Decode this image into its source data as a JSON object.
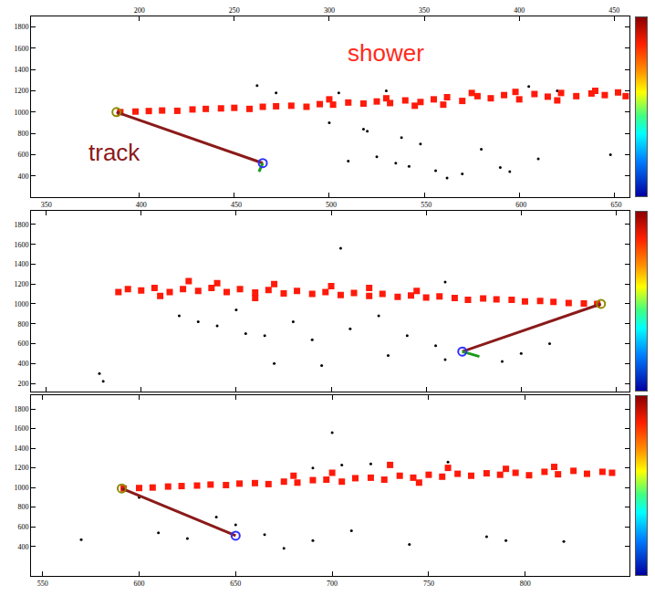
{
  "chart_data": [
    {
      "type": "scatter",
      "xlim": [
        143,
        458
      ],
      "xticks": [
        200,
        250,
        300,
        350,
        400,
        450
      ],
      "ylim": [
        200,
        1900
      ],
      "yticks": [
        400,
        600,
        800,
        1000,
        1200,
        1400,
        1600,
        1800
      ],
      "annotations": [
        {
          "text": "shower",
          "x": 330,
          "y": 1560,
          "color": "#ff2a1a"
        },
        {
          "text": "track",
          "x": 187,
          "y": 620,
          "color": "#8b1a1a"
        }
      ],
      "series": [
        {
          "type": "scatter",
          "marker": "circle",
          "color": "#000000",
          "x": [
            262,
            272,
            305,
            330,
            300,
            318,
            320,
            338,
            348,
            325,
            335,
            342,
            310,
            356,
            370,
            390,
            395,
            410,
            405,
            420,
            440,
            448,
            380,
            362
          ],
          "values": [
            1250,
            1180,
            1180,
            1200,
            900,
            840,
            820,
            760,
            700,
            580,
            520,
            490,
            540,
            450,
            420,
            480,
            440,
            560,
            1240,
            1200,
            1210,
            600,
            650,
            380
          ]
        },
        {
          "type": "scatter",
          "marker": "square",
          "color": "#ff1a0a",
          "x": [
            190,
            198,
            205,
            212,
            220,
            228,
            235,
            243,
            250,
            258,
            265,
            272,
            280,
            288,
            295,
            302,
            310,
            318,
            325,
            332,
            340,
            348,
            355,
            362,
            370,
            378,
            385,
            392,
            400,
            408,
            415,
            422,
            430,
            438,
            445,
            452,
            456,
            300,
            345,
            375,
            398,
            420,
            440,
            360,
            330
          ],
          "values": [
            1000,
            1005,
            1010,
            1015,
            1012,
            1025,
            1030,
            1035,
            1040,
            1030,
            1050,
            1055,
            1060,
            1050,
            1075,
            1070,
            1090,
            1080,
            1100,
            1085,
            1110,
            1095,
            1120,
            1140,
            1105,
            1150,
            1130,
            1160,
            1120,
            1170,
            1145,
            1180,
            1150,
            1175,
            1160,
            1185,
            1150,
            1120,
            1060,
            1180,
            1190,
            1110,
            1200,
            1070,
            1130
          ]
        },
        {
          "type": "line",
          "line_style": "solid",
          "color": "#8b1a1a",
          "x": [
            188,
            265
          ],
          "values": [
            1000,
            520
          ]
        },
        {
          "type": "line",
          "line_style": "solid",
          "color": "#1a9a1a",
          "x": [
            265,
            263
          ],
          "values": [
            520,
            440
          ]
        },
        {
          "type": "scatter",
          "marker": "circle-open",
          "color": "#8c8c00",
          "x": [
            188
          ],
          "values": [
            1000
          ]
        },
        {
          "type": "scatter",
          "marker": "circle-open",
          "color": "#3030ff",
          "x": [
            265
          ],
          "values": [
            520
          ]
        }
      ]
    },
    {
      "type": "scatter",
      "xlim": [
        342,
        657
      ],
      "xticks": [
        350,
        400,
        450,
        500,
        550,
        600,
        650
      ],
      "ylim": [
        120,
        1940
      ],
      "yticks": [
        200,
        400,
        600,
        800,
        1000,
        1200,
        1400,
        1600,
        1800
      ],
      "series": [
        {
          "type": "scatter",
          "marker": "circle",
          "color": "#000000",
          "x": [
            378,
            380,
            420,
            430,
            440,
            455,
            465,
            480,
            490,
            470,
            495,
            510,
            525,
            540,
            555,
            530,
            560,
            590,
            600,
            615,
            505,
            560,
            450
          ],
          "values": [
            300,
            220,
            880,
            820,
            780,
            700,
            680,
            820,
            640,
            400,
            380,
            750,
            880,
            680,
            580,
            480,
            440,
            420,
            500,
            600,
            1560,
            1220,
            940
          ]
        },
        {
          "type": "scatter",
          "marker": "square",
          "color": "#ff1a0a",
          "x": [
            640,
            633,
            625,
            617,
            610,
            602,
            595,
            587,
            580,
            572,
            565,
            557,
            550,
            542,
            535,
            527,
            520,
            512,
            505,
            497,
            490,
            482,
            475,
            467,
            460,
            452,
            445,
            437,
            430,
            422,
            415,
            407,
            400,
            393,
            388,
            500,
            470,
            440,
            520,
            545,
            460,
            425,
            410
          ],
          "values": [
            1000,
            1005,
            1010,
            1020,
            1030,
            1025,
            1040,
            1045,
            1055,
            1040,
            1060,
            1075,
            1065,
            1085,
            1070,
            1100,
            1080,
            1110,
            1090,
            1120,
            1100,
            1130,
            1105,
            1140,
            1115,
            1150,
            1120,
            1160,
            1130,
            1150,
            1120,
            1160,
            1135,
            1150,
            1120,
            1180,
            1200,
            1210,
            1160,
            1130,
            1060,
            1230,
            1080
          ]
        },
        {
          "type": "line",
          "line_style": "solid",
          "color": "#8b1a1a",
          "x": [
            642,
            569
          ],
          "values": [
            1000,
            520
          ]
        },
        {
          "type": "line",
          "line_style": "solid",
          "color": "#1a9a1a",
          "x": [
            569,
            578
          ],
          "values": [
            520,
            470
          ]
        },
        {
          "type": "scatter",
          "marker": "circle-open",
          "color": "#8c8c00",
          "x": [
            642
          ],
          "values": [
            1000
          ]
        },
        {
          "type": "scatter",
          "marker": "circle-open",
          "color": "#3030ff",
          "x": [
            569
          ],
          "values": [
            520
          ]
        }
      ]
    },
    {
      "type": "scatter",
      "xlim": [
        544,
        854
      ],
      "xticks": [
        550,
        600,
        650,
        700,
        750,
        800
      ],
      "ylim": [
        100,
        1940
      ],
      "yticks": [
        400,
        600,
        800,
        1000,
        1200,
        1400,
        1600,
        1800
      ],
      "series": [
        {
          "type": "scatter",
          "marker": "circle",
          "color": "#000000",
          "x": [
            570,
            610,
            625,
            650,
            665,
            690,
            710,
            740,
            780,
            700,
            705,
            720,
            690,
            760,
            790,
            600,
            640,
            675,
            820
          ],
          "values": [
            470,
            540,
            480,
            620,
            520,
            460,
            560,
            420,
            500,
            1560,
            1230,
            1240,
            1200,
            1260,
            460,
            900,
            700,
            380,
            450
          ]
        },
        {
          "type": "scatter",
          "marker": "square",
          "color": "#ff1a0a",
          "x": [
            592,
            600,
            607,
            615,
            622,
            630,
            637,
            645,
            652,
            660,
            667,
            675,
            682,
            690,
            697,
            705,
            712,
            720,
            727,
            735,
            742,
            750,
            757,
            765,
            772,
            780,
            787,
            795,
            802,
            810,
            817,
            825,
            832,
            840,
            845,
            700,
            730,
            760,
            745,
            790,
            815,
            680
          ],
          "values": [
            990,
            995,
            1000,
            1010,
            1015,
            1020,
            1030,
            1025,
            1040,
            1045,
            1035,
            1060,
            1050,
            1075,
            1080,
            1060,
            1095,
            1100,
            1080,
            1120,
            1100,
            1130,
            1110,
            1140,
            1120,
            1145,
            1130,
            1150,
            1125,
            1160,
            1135,
            1170,
            1140,
            1160,
            1150,
            1150,
            1230,
            1200,
            1050,
            1190,
            1210,
            1120
          ]
        },
        {
          "type": "line",
          "line_style": "solid",
          "color": "#8b1a1a",
          "x": [
            591,
            650
          ],
          "values": [
            990,
            510
          ]
        },
        {
          "type": "scatter",
          "marker": "circle-open",
          "color": "#8c8c00",
          "x": [
            591
          ],
          "values": [
            990
          ]
        },
        {
          "type": "scatter",
          "marker": "circle-open",
          "color": "#3030ff",
          "x": [
            650
          ],
          "values": [
            510
          ]
        }
      ]
    }
  ]
}
